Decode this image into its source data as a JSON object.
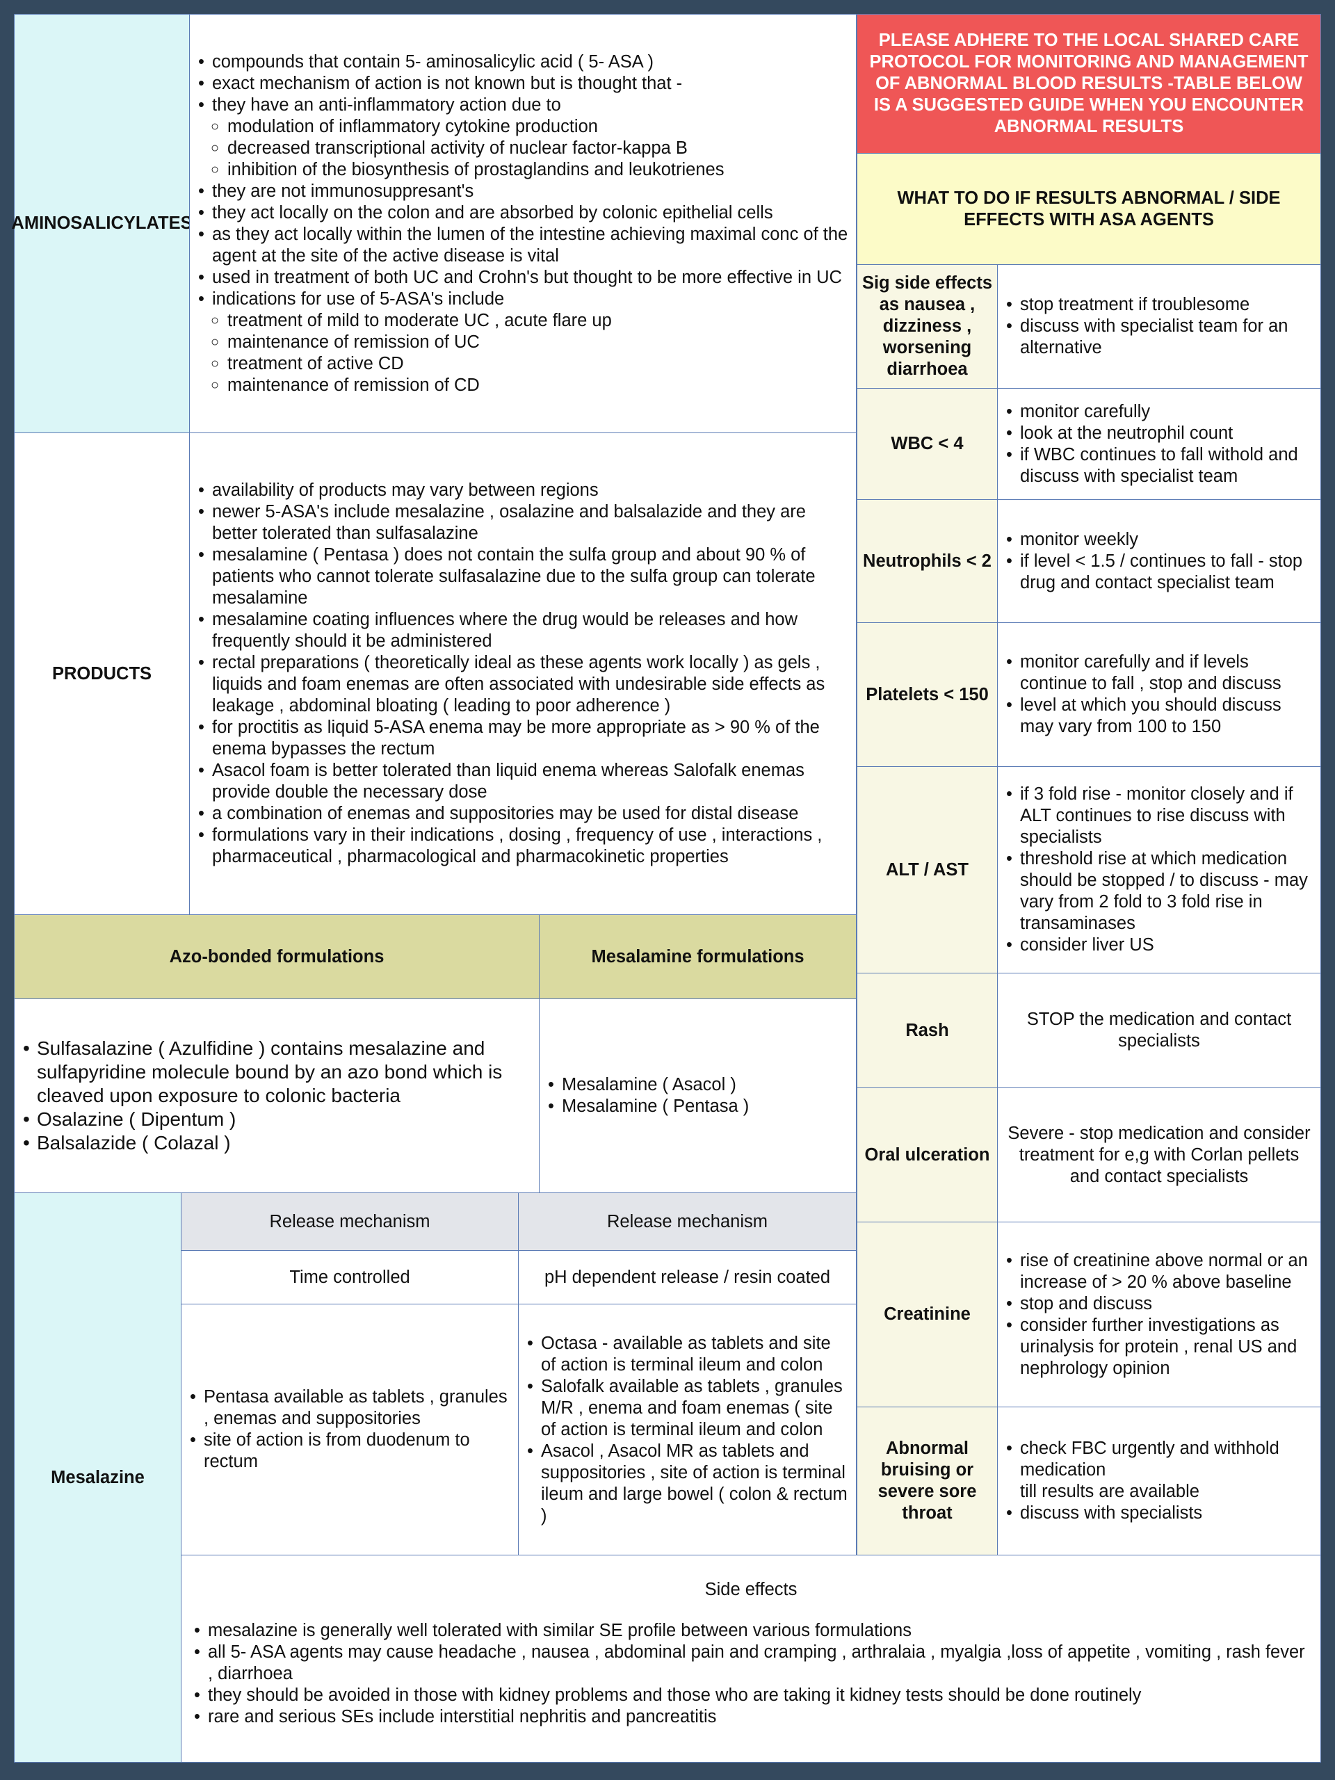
{
  "aminosalicylates": {
    "label": "AMINOSALICYLATES",
    "items": [
      {
        "t": "compounds that contain 5- aminosalicylic acid ( 5- ASA )",
        "sub": false
      },
      {
        "t": "exact mechanism of action is not known but is thought that -",
        "sub": false
      },
      {
        "t": "they have an anti-inflammatory action due to",
        "sub": false
      },
      {
        "t": "modulation of inflammatory cytokine production",
        "sub": true
      },
      {
        "t": "decreased transcriptional activity of nuclear factor-kappa B",
        "sub": true
      },
      {
        "t": "inhibition of the biosynthesis of prostaglandins and leukotrienes",
        "sub": true
      },
      {
        "t": "they are not immunosuppresant's",
        "sub": false
      },
      {
        "t": "they act locally on the colon and are absorbed by colonic epithelial cells",
        "sub": false
      },
      {
        "t": "as they act locally within the lumen of the intestine achieving maximal conc of the agent at the site of the active disease is vital",
        "sub": false
      },
      {
        "t": "used in treatment of both UC and Crohn's but thought to be more effective in UC",
        "sub": false
      },
      {
        "t": "indications for use of 5-ASA's include",
        "sub": false
      },
      {
        "t": "treatment of mild to moderate UC , acute flare up",
        "sub": true
      },
      {
        "t": "maintenance of remission of UC",
        "sub": true
      },
      {
        "t": "treatment of active CD",
        "sub": true
      },
      {
        "t": "maintenance of remission of CD",
        "sub": true
      }
    ]
  },
  "products": {
    "label": "PRODUCTS",
    "items": [
      "availability of products may vary between regions",
      "newer 5-ASA's include mesalazine , osalazine and balsalazide and they are better tolerated than sulfasalazine",
      "mesalamine ( Pentasa ) does not contain the sulfa group and about 90 % of patients who cannot tolerate sulfasalazine due to the sulfa group can tolerate mesalamine",
      "mesalamine coating influences where the drug would be releases and how frequently should it be administered",
      "rectal preparations ( theoretically ideal as these agents work locally ) as gels , liquids and foam enemas are often associated with undesirable side effects as leakage , abdominal bloating ( leading to poor adherence )",
      "for proctitis as liquid 5-ASA enema may be more appropriate as > 90 % of the enema bypasses the rectum",
      "Asacol foam is better tolerated than liquid enema whereas Salofalk enemas provide double the necessary dose",
      "a combination of enemas and suppositories may be used for distal disease",
      "formulations vary in their indications , dosing , frequency of use , interactions , pharmaceutical , pharmacological and pharmacokinetic properties"
    ]
  },
  "formulations": {
    "azo_header": "Azo-bonded formulations",
    "mes_header": "Mesalamine formulations",
    "azo_items": [
      "Sulfasalazine ( Azulfidine ) contains mesalazine and sulfapyridine molecule bound by an azo bond which is cleaved upon exposure to colonic bacteria",
      "Osalazine ( Dipentum )",
      "Balsalazide ( Colazal )"
    ],
    "mes_items": [
      "Mesalamine ( Asacol )",
      "Mesalamine ( Pentasa )"
    ]
  },
  "mesalazine": {
    "label": "Mesalazine",
    "col1_header": "Release mechanism",
    "col2_header": "Release mechanism",
    "col1_type": "Time controlled",
    "col2_type": "pH dependent release / resin coated",
    "col1_items": [
      "Pentasa available as tablets , granules , enemas and suppositories",
      "site of action is from  duodenum to rectum"
    ],
    "col2_items": [
      "Octasa - available as tablets and site of action is terminal ileum and colon",
      "Salofalk available as tablets , granules M/R , enema and foam enemas ( site of action is terminal ileum and colon",
      "Asacol , Asacol MR as tablets and suppositories , site of action is terminal ileum and large bowel ( colon & rectum )"
    ],
    "side_effects_title": "Side effects",
    "side_effects": [
      "mesalazine is generally well tolerated with similar SE profile between various formulations",
      "all 5- ASA agents may cause headache , nausea , abdominal pain and cramping , arthralaia , myalgia ,loss of appetite , vomiting , rash fever , diarrhoea",
      "they should be avoided in those with kidney problems and those who are taking it kidney tests should be done routinely",
      "rare and serious SEs include interstitial nephritis and pancreatitis"
    ]
  },
  "warning": "PLEASE ADHERE TO THE LOCAL SHARED CARE PROTOCOL FOR MONITORING AND MANAGEMENT OF ABNORMAL BLOOD RESULTS -TABLE BELOW IS A SUGGESTED GUIDE WHEN YOU ENCOUNTER ABNORMAL RESULTS",
  "abnormal_header": "WHAT TO DO IF RESULTS ABNORMAL / SIDE EFFECTS WITH ASA AGENTS",
  "abnormal_rows": [
    {
      "label": "Sig side effects as nausea , dizziness , worsening diarrhoea",
      "items": [
        "stop treatment if troublesome",
        "discuss with specialist team for an alternative"
      ]
    },
    {
      "label": "WBC < 4",
      "items": [
        "monitor carefully",
        "look at the neutrophil count",
        "if WBC continues to fall withold and discuss with specialist team"
      ]
    },
    {
      "label": "Neutrophils < 2",
      "items": [
        "monitor weekly",
        "if level < 1.5 / continues to fall - stop drug and contact specialist team"
      ]
    },
    {
      "label": "Platelets < 150",
      "items": [
        "monitor carefully and if levels continue to fall , stop and discuss",
        "level at which you should discuss may vary from 100 to 150"
      ]
    },
    {
      "label": "ALT / AST",
      "items": [
        "if 3 fold rise - monitor closely and if ALT continues to rise discuss with specialists",
        "threshold rise at which medication should be stopped / to discuss - may vary from 2 fold to 3 fold rise in transaminases",
        "consider liver US"
      ]
    },
    {
      "label": "Rash",
      "text": "STOP the medication and contact specialists"
    },
    {
      "label": "Oral ulceration",
      "text": "Severe - stop medication and consider treatment for e,g with Corlan pellets and contact specialists"
    },
    {
      "label": "Creatinine",
      "items": [
        "rise of creatinine above normal or an increase of > 20 % above baseline",
        "stop and discuss",
        "consider further investigations as urinalysis for protein , renal US and nephrology opinion"
      ]
    },
    {
      "label": "Abnormal bruising or severe sore throat",
      "items": [
        "check FBC urgently and withhold medication\ntill results are available",
        "discuss with specialists"
      ]
    }
  ],
  "colors": {
    "border": "#34495e",
    "warning": "#ef5656",
    "header_yellow": "#fcfbc8",
    "olive": "#dadaa0",
    "cyan": "#dbf6f7"
  }
}
